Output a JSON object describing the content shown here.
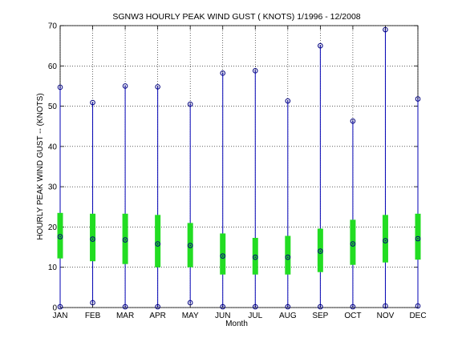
{
  "chart_data": {
    "type": "box",
    "title": "SGNW3  HOURLY PEAK WIND GUST ( KNOTS) 1/1996 - 12/2008",
    "xlabel": "Month",
    "ylabel": "HOURLY PEAK WIND GUST -- (KNOTS)",
    "ylim": [
      0,
      70
    ],
    "yticks": [
      0,
      10,
      20,
      30,
      40,
      50,
      60,
      70
    ],
    "grid": true,
    "categories": [
      "JAN",
      "FEB",
      "MAR",
      "APR",
      "MAY",
      "JUN",
      "JUL",
      "AUG",
      "SEP",
      "OCT",
      "NOV",
      "DEC"
    ],
    "series": [
      {
        "min": [
          0.2,
          1.2,
          0.2,
          0.2,
          1.2,
          0.2,
          0.2,
          0.2,
          0.2,
          0.2,
          0.4,
          0.4
        ],
        "q1": [
          12.2,
          11.5,
          10.8,
          10.0,
          10.0,
          8.2,
          8.2,
          8.2,
          8.8,
          10.6,
          11.2,
          11.9
        ],
        "median": [
          17.6,
          17.0,
          16.8,
          15.8,
          15.4,
          12.8,
          12.5,
          12.5,
          14.0,
          15.8,
          16.6,
          17.1
        ],
        "q3": [
          23.5,
          23.3,
          23.3,
          23.0,
          21.0,
          18.4,
          17.3,
          17.8,
          19.6,
          21.8,
          23.0,
          23.3
        ],
        "max": [
          54.7,
          50.9,
          55.0,
          54.8,
          50.5,
          58.2,
          58.8,
          51.3,
          65.0,
          46.3,
          69.0,
          51.8
        ]
      }
    ],
    "colors": {
      "whisker": "#0000b4",
      "box": "#22dd22",
      "marker": "#000080",
      "grid": "#000000"
    }
  }
}
